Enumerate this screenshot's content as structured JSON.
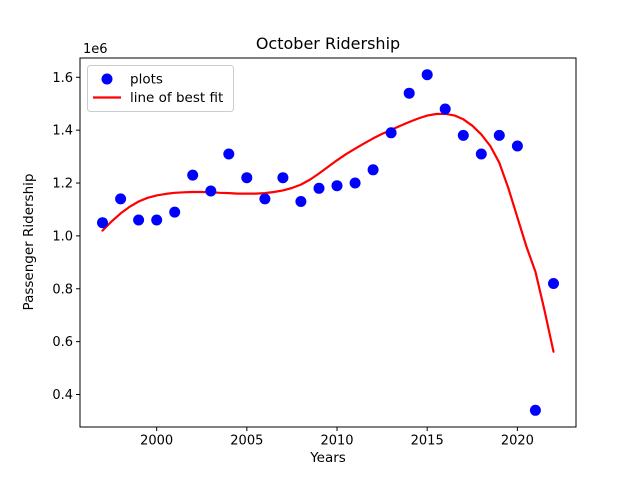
{
  "figure": {
    "title": "October Ridership",
    "xlabel": "Years",
    "ylabel": "Passenger Ridership",
    "offset_text": "1e6"
  },
  "legend": {
    "position": "upper left",
    "items": [
      {
        "label": "plots",
        "marker": "dot",
        "color": "#0000ff"
      },
      {
        "label": "line of best fit",
        "marker": "line",
        "color": "#ff0000"
      }
    ]
  },
  "chart_data": {
    "type": "scatter",
    "title": "October Ridership",
    "xlabel": "Years",
    "ylabel": "Passenger Ridership",
    "y_offset_label": "1e6",
    "y_unit_multiplier": 1000000,
    "xlim": [
      1995.75,
      2023.25
    ],
    "ylim": [
      0.277,
      1.673
    ],
    "xticks": [
      2000,
      2005,
      2010,
      2015,
      2020
    ],
    "yticks": [
      0.4,
      0.6,
      0.8,
      1.0,
      1.2,
      1.4,
      1.6
    ],
    "grid": false,
    "legend_position": "upper left",
    "series": [
      {
        "name": "plots",
        "type": "scatter",
        "color": "#0000ff",
        "x": [
          1997,
          1998,
          1999,
          2000,
          2001,
          2002,
          2003,
          2004,
          2005,
          2006,
          2007,
          2008,
          2009,
          2010,
          2011,
          2012,
          2013,
          2014,
          2015,
          2016,
          2017,
          2018,
          2019,
          2020,
          2021,
          2022
        ],
        "y": [
          1.05,
          1.14,
          1.06,
          1.06,
          1.09,
          1.23,
          1.17,
          1.31,
          1.22,
          1.14,
          1.22,
          1.13,
          1.18,
          1.19,
          1.2,
          1.25,
          1.39,
          1.54,
          1.61,
          1.48,
          1.38,
          1.31,
          1.38,
          1.34,
          0.34,
          0.82
        ]
      },
      {
        "name": "line of best fit",
        "type": "line",
        "color": "#ff0000",
        "x": [
          1997,
          1997.5,
          1998,
          1998.5,
          1999,
          1999.5,
          2000,
          2000.5,
          2001,
          2001.5,
          2002,
          2002.5,
          2003,
          2003.5,
          2004,
          2004.5,
          2005,
          2005.5,
          2006,
          2006.5,
          2007,
          2007.5,
          2008,
          2008.5,
          2009,
          2009.5,
          2010,
          2010.5,
          2011,
          2011.5,
          2012,
          2012.5,
          2013,
          2013.5,
          2014,
          2014.5,
          2015,
          2015.5,
          2016,
          2016.5,
          2017,
          2017.5,
          2018,
          2018.5,
          2019,
          2019.5,
          2020,
          2020.5,
          2021,
          2021.5,
          2022
        ],
        "y": [
          1.02,
          1.055,
          1.085,
          1.11,
          1.13,
          1.144,
          1.153,
          1.159,
          1.163,
          1.165,
          1.166,
          1.166,
          1.165,
          1.163,
          1.162,
          1.16,
          1.16,
          1.16,
          1.162,
          1.166,
          1.172,
          1.181,
          1.194,
          1.213,
          1.236,
          1.261,
          1.286,
          1.309,
          1.33,
          1.35,
          1.369,
          1.386,
          1.401,
          1.416,
          1.431,
          1.444,
          1.455,
          1.461,
          1.462,
          1.456,
          1.441,
          1.417,
          1.384,
          1.34,
          1.277,
          1.18,
          1.07,
          0.96,
          0.865,
          0.72,
          0.562
        ]
      }
    ]
  }
}
